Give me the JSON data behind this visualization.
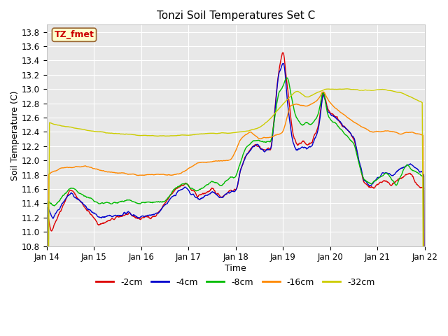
{
  "title": "Tonzi Soil Temperatures Set C",
  "xlabel": "Time",
  "ylabel": "Soil Temperature (C)",
  "ylim": [
    10.8,
    13.9
  ],
  "xlim": [
    0,
    8
  ],
  "xtick_labels": [
    "Jan 14",
    "Jan 15",
    "Jan 16",
    "Jan 17",
    "Jan 18",
    "Jan 19",
    "Jan 20",
    "Jan 21",
    "Jan 22"
  ],
  "ytick_values": [
    10.8,
    11.0,
    11.2,
    11.4,
    11.6,
    11.8,
    12.0,
    12.2,
    12.4,
    12.6,
    12.8,
    13.0,
    13.2,
    13.4,
    13.6,
    13.8
  ],
  "annotation_text": "TZ_fmet",
  "annotation_bg": "#ffffcc",
  "annotation_border": "#996633",
  "annotation_text_color": "#cc0000",
  "plot_bg_color": "#e8e8e8",
  "grid_color": "#ffffff",
  "series_colors": [
    "#dd0000",
    "#0000cc",
    "#00bb00",
    "#ff8800",
    "#cccc00"
  ],
  "series_labels": [
    "-2cm",
    "-4cm",
    "-8cm",
    "-16cm",
    "-32cm"
  ],
  "series_linewidth": 1.0,
  "fig_facecolor": "#ffffff"
}
